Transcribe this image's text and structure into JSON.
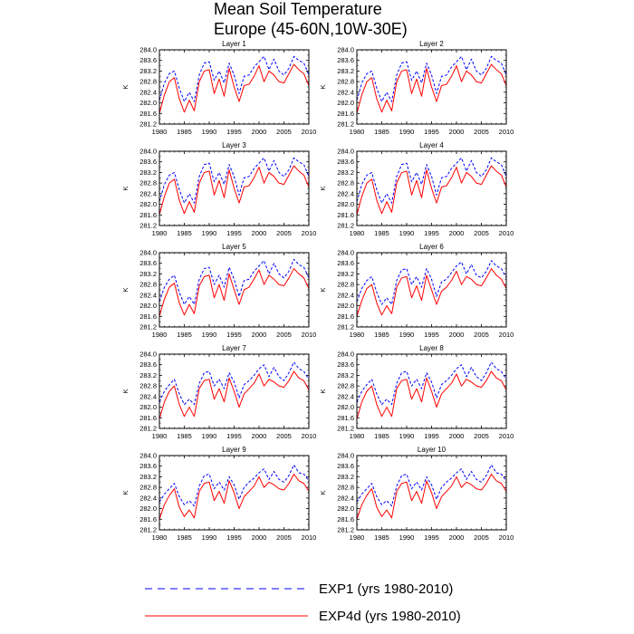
{
  "title": {
    "line1": "Mean Soil Temperature",
    "line2": "Europe (45-60N,10W-30E)"
  },
  "legend": {
    "items": [
      {
        "label": "EXP1 (yrs 1980-2010)",
        "color": "#0000ff",
        "style": "dashed"
      },
      {
        "label": "EXP4d (yrs 1980-2010)",
        "color": "#ff0000",
        "style": "solid"
      }
    ]
  },
  "chart_data": {
    "type": "line",
    "layout": "5 rows x 2 columns of small multiples",
    "ylabel": "K",
    "xlim": [
      1980,
      2010
    ],
    "ylim": [
      281.2,
      284.0
    ],
    "xticks": [
      "1980",
      "1985",
      "1990",
      "1995",
      "2000",
      "2005",
      "2010"
    ],
    "yticks": [
      "281.2",
      "281.6",
      "282.0",
      "282.4",
      "282.8",
      "283.2",
      "283.6",
      "284.0"
    ],
    "x": [
      1980,
      1981,
      1982,
      1983,
      1984,
      1985,
      1986,
      1987,
      1988,
      1989,
      1990,
      1991,
      1992,
      1993,
      1994,
      1995,
      1996,
      1997,
      1998,
      1999,
      2000,
      2001,
      2002,
      2003,
      2004,
      2005,
      2006,
      2007,
      2008,
      2009,
      2010
    ],
    "panels": [
      {
        "title": "Layer 1",
        "series": [
          {
            "name": "EXP1",
            "values": [
              282.1,
              282.75,
              283.1,
              283.2,
              282.55,
              282.05,
              282.4,
              282.05,
              283.05,
              283.5,
              283.55,
              282.85,
              283.2,
              282.75,
              283.5,
              283.05,
              282.35,
              283.0,
              283.05,
              283.35,
              283.55,
              283.75,
              283.25,
              283.65,
              283.2,
              283.05,
              283.3,
              283.75,
              283.6,
              283.5,
              283.05
            ]
          },
          {
            "name": "EXP4d",
            "values": [
              281.6,
              282.3,
              282.8,
              282.95,
              282.15,
              281.65,
              282.1,
              281.7,
              282.8,
              283.2,
              283.25,
              282.35,
              282.9,
              282.25,
              283.3,
              282.6,
              282.05,
              282.65,
              282.7,
              283.0,
              283.4,
              282.8,
              283.2,
              283.05,
              282.8,
              282.75,
              283.1,
              283.45,
              283.25,
              283.1,
              282.65
            ]
          }
        ]
      },
      {
        "title": "Layer 2",
        "series": [
          {
            "name": "EXP1",
            "values": [
              282.1,
              282.75,
              283.1,
              283.2,
              282.55,
              282.05,
              282.4,
              282.05,
              283.05,
              283.5,
              283.55,
              282.85,
              283.2,
              282.75,
              283.5,
              283.05,
              282.35,
              283.0,
              283.05,
              283.35,
              283.55,
              283.75,
              283.25,
              283.65,
              283.2,
              283.05,
              283.3,
              283.75,
              283.6,
              283.5,
              283.05
            ]
          },
          {
            "name": "EXP4d",
            "values": [
              281.6,
              282.3,
              282.8,
              282.95,
              282.15,
              281.65,
              282.1,
              281.7,
              282.8,
              283.2,
              283.25,
              282.35,
              282.9,
              282.25,
              283.3,
              282.6,
              282.05,
              282.65,
              282.7,
              283.0,
              283.4,
              282.8,
              283.2,
              283.05,
              282.8,
              282.75,
              283.1,
              283.45,
              283.25,
              283.1,
              282.65
            ]
          }
        ]
      },
      {
        "title": "Layer 3",
        "series": [
          {
            "name": "EXP1",
            "values": [
              282.1,
              282.75,
              283.1,
              283.2,
              282.55,
              282.05,
              282.4,
              282.05,
              283.05,
              283.5,
              283.55,
              282.85,
              283.2,
              282.75,
              283.5,
              283.05,
              282.35,
              283.0,
              283.05,
              283.35,
              283.55,
              283.75,
              283.25,
              283.65,
              283.2,
              283.05,
              283.3,
              283.75,
              283.6,
              283.5,
              283.05
            ]
          },
          {
            "name": "EXP4d",
            "values": [
              281.6,
              282.3,
              282.8,
              282.95,
              282.15,
              281.65,
              282.1,
              281.7,
              282.8,
              283.2,
              283.25,
              282.35,
              282.9,
              282.25,
              283.3,
              282.6,
              282.05,
              282.65,
              282.7,
              283.0,
              283.4,
              282.8,
              283.2,
              283.05,
              282.8,
              282.75,
              283.1,
              283.45,
              283.25,
              283.1,
              282.65
            ]
          }
        ]
      },
      {
        "title": "Layer 4",
        "series": [
          {
            "name": "EXP1",
            "values": [
              282.1,
              282.75,
              283.1,
              283.2,
              282.55,
              282.05,
              282.4,
              282.05,
              283.05,
              283.5,
              283.55,
              282.85,
              283.2,
              282.75,
              283.5,
              283.05,
              282.35,
              283.0,
              283.05,
              283.35,
              283.55,
              283.75,
              283.25,
              283.65,
              283.2,
              283.05,
              283.3,
              283.75,
              283.6,
              283.5,
              283.05
            ]
          },
          {
            "name": "EXP4d",
            "values": [
              281.6,
              282.3,
              282.8,
              282.95,
              282.15,
              281.65,
              282.1,
              281.7,
              282.8,
              283.2,
              283.25,
              282.35,
              282.9,
              282.25,
              283.3,
              282.6,
              282.05,
              282.65,
              282.7,
              283.0,
              283.4,
              282.8,
              283.2,
              283.05,
              282.8,
              282.75,
              283.1,
              283.45,
              283.25,
              283.1,
              282.65
            ]
          }
        ]
      },
      {
        "title": "Layer 5",
        "series": [
          {
            "name": "EXP1",
            "values": [
              282.15,
              282.7,
              283.0,
              283.15,
              282.5,
              282.05,
              282.35,
              282.05,
              283.0,
              283.4,
              283.45,
              282.8,
              283.15,
              282.7,
              283.45,
              283.0,
              282.35,
              282.95,
              283.0,
              283.3,
              283.5,
              283.7,
              283.2,
              283.6,
              283.2,
              283.05,
              283.3,
              283.75,
              283.55,
              283.45,
              283.05
            ]
          },
          {
            "name": "EXP4d",
            "values": [
              281.6,
              282.25,
              282.7,
              282.85,
              282.1,
              281.65,
              282.05,
              281.7,
              282.75,
              283.1,
              283.15,
              282.3,
              282.8,
              282.2,
              283.2,
              282.6,
              282.05,
              282.6,
              282.7,
              283.0,
              283.35,
              282.8,
              283.15,
              283.0,
              282.8,
              282.75,
              283.05,
              283.4,
              283.2,
              283.05,
              282.65
            ]
          }
        ]
      },
      {
        "title": "Layer 6",
        "series": [
          {
            "name": "EXP1",
            "values": [
              282.15,
              282.65,
              282.95,
              283.1,
              282.5,
              282.05,
              282.3,
              282.05,
              282.95,
              283.35,
              283.4,
              282.8,
              283.1,
              282.7,
              283.4,
              283.0,
              282.35,
              282.9,
              283.0,
              283.25,
              283.5,
              283.65,
              283.2,
              283.55,
              283.15,
              283.05,
              283.3,
              283.7,
              283.5,
              283.4,
              283.05
            ]
          },
          {
            "name": "EXP4d",
            "values": [
              281.6,
              282.2,
              282.65,
              282.8,
              282.1,
              281.65,
              282.0,
              281.7,
              282.7,
              283.05,
              283.1,
              282.3,
              282.75,
              282.2,
              283.15,
              282.6,
              282.05,
              282.55,
              282.7,
              282.95,
              283.3,
              282.8,
              283.1,
              283.0,
              282.8,
              282.75,
              283.05,
              283.4,
              283.15,
              283.0,
              282.65
            ]
          }
        ]
      },
      {
        "title": "Layer 7",
        "series": [
          {
            "name": "EXP1",
            "values": [
              282.2,
              282.6,
              282.85,
              283.05,
              282.5,
              282.1,
              282.3,
              282.1,
              282.9,
              283.3,
              283.35,
              282.8,
              283.05,
              282.7,
              283.3,
              282.95,
              282.35,
              282.85,
              283.0,
              283.2,
              283.45,
              283.6,
              283.15,
              283.5,
              283.15,
              283.0,
              283.3,
              283.7,
              283.45,
              283.35,
              283.05
            ]
          },
          {
            "name": "EXP4d",
            "values": [
              281.55,
              282.2,
              282.6,
              282.8,
              282.1,
              281.65,
              282.0,
              281.65,
              282.7,
              283.0,
              283.05,
              282.3,
              282.7,
              282.2,
              283.1,
              282.6,
              282.0,
              282.5,
              282.7,
              282.9,
              283.25,
              282.8,
              283.05,
              282.95,
              282.8,
              282.75,
              283.0,
              283.35,
              283.1,
              283.0,
              282.65
            ]
          }
        ]
      },
      {
        "title": "Layer 8",
        "series": [
          {
            "name": "EXP1",
            "values": [
              282.2,
              282.6,
              282.85,
              283.05,
              282.5,
              282.1,
              282.3,
              282.1,
              282.9,
              283.3,
              283.35,
              282.8,
              283.05,
              282.7,
              283.3,
              282.95,
              282.35,
              282.85,
              283.0,
              283.2,
              283.45,
              283.6,
              283.15,
              283.5,
              283.15,
              283.0,
              283.3,
              283.7,
              283.45,
              283.35,
              283.05
            ]
          },
          {
            "name": "EXP4d",
            "values": [
              281.55,
              282.2,
              282.6,
              282.8,
              282.1,
              281.65,
              282.0,
              281.65,
              282.7,
              283.0,
              283.05,
              282.3,
              282.7,
              282.2,
              283.1,
              282.6,
              282.0,
              282.5,
              282.7,
              282.9,
              283.25,
              282.8,
              283.05,
              282.95,
              282.8,
              282.75,
              283.0,
              283.35,
              283.1,
              283.0,
              282.65
            ]
          }
        ]
      },
      {
        "title": "Layer 9",
        "series": [
          {
            "name": "EXP1",
            "values": [
              282.25,
              282.55,
              282.75,
              282.95,
              282.45,
              282.15,
              282.3,
              282.1,
              282.85,
              283.25,
              283.3,
              282.75,
              283.0,
              282.7,
              283.2,
              282.9,
              282.35,
              282.8,
              283.0,
              283.15,
              283.35,
              283.5,
              283.1,
              283.4,
              283.1,
              283.0,
              283.25,
              283.65,
              283.35,
              283.3,
              283.05
            ]
          },
          {
            "name": "EXP4d",
            "values": [
              281.6,
              282.15,
              282.5,
              282.75,
              282.05,
              281.7,
              281.95,
              281.65,
              282.65,
              282.95,
              283.0,
              282.3,
              282.65,
              282.2,
              283.05,
              282.6,
              282.0,
              282.45,
              282.65,
              282.85,
              283.2,
              282.8,
              283.0,
              282.9,
              282.75,
              282.7,
              282.95,
              283.3,
              283.05,
              282.95,
              282.65
            ]
          }
        ]
      },
      {
        "title": "Layer 10",
        "series": [
          {
            "name": "EXP1",
            "values": [
              282.25,
              282.55,
              282.75,
              282.95,
              282.45,
              282.15,
              282.3,
              282.1,
              282.85,
              283.25,
              283.3,
              282.75,
              283.0,
              282.7,
              283.2,
              282.9,
              282.35,
              282.8,
              283.0,
              283.15,
              283.35,
              283.5,
              283.1,
              283.4,
              283.1,
              283.0,
              283.25,
              283.65,
              283.35,
              283.3,
              283.05
            ]
          },
          {
            "name": "EXP4d",
            "values": [
              281.6,
              282.15,
              282.5,
              282.75,
              282.05,
              281.7,
              281.95,
              281.65,
              282.65,
              282.95,
              283.0,
              282.3,
              282.65,
              282.2,
              283.05,
              282.6,
              282.0,
              282.45,
              282.65,
              282.85,
              283.2,
              282.8,
              283.0,
              282.9,
              282.75,
              282.7,
              282.95,
              283.3,
              283.05,
              282.95,
              282.65
            ]
          }
        ]
      }
    ]
  }
}
